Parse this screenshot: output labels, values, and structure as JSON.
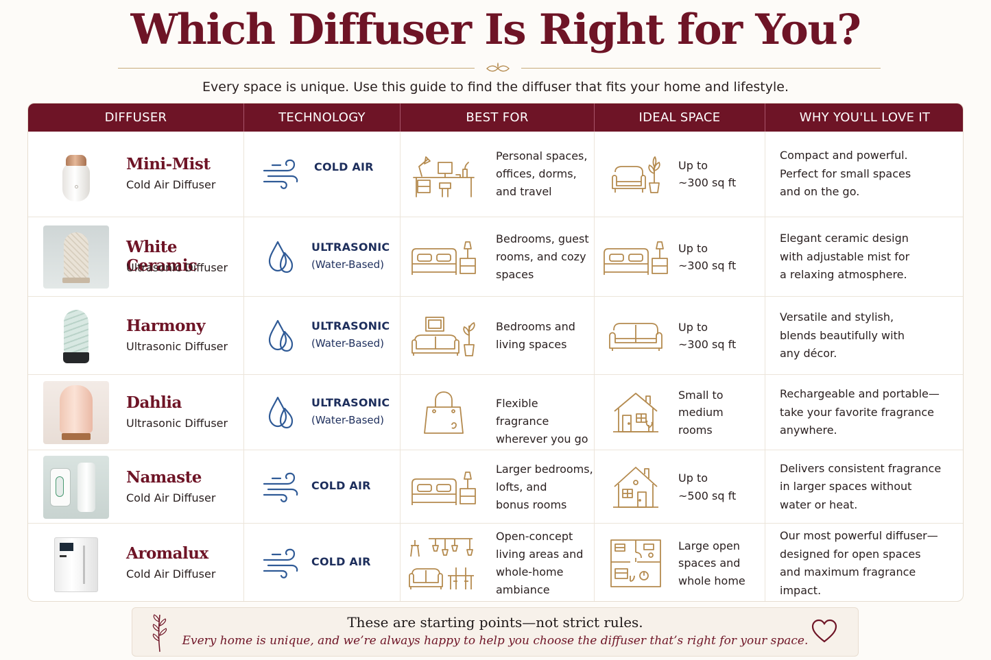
{
  "title": "Which Diffuser Is Right for You?",
  "subtitle": "Every space is unique. Use this guide to find the diffuser that fits your home and lifestyle.",
  "columns": [
    "DIFFUSER",
    "TECHNOLOGY",
    "BEST FOR",
    "IDEAL SPACE",
    "WHY YOU'LL LOVE IT"
  ],
  "rows": [
    {
      "name": "Mini-Mist",
      "type": "Cold Air Diffuser",
      "tech": "COLD AIR",
      "tech_sub": "",
      "tech_icon": "wind-icon",
      "best_for": [
        "Personal spaces,",
        "offices, dorms,",
        "and travel"
      ],
      "best_icon": "desk-icon",
      "ideal": [
        "Up to",
        "~300 sq ft"
      ],
      "ideal_icon": "armchair-plant-icon",
      "why": [
        "Compact and powerful.",
        "Perfect for small spaces",
        "and on the go."
      ]
    },
    {
      "name": "White Ceramic",
      "type": "Ultrasonic Diffuser",
      "tech": "ULTRASONIC",
      "tech_sub": "(Water-Based)",
      "tech_icon": "water-drops-icon",
      "best_for": [
        "Bedrooms, guest",
        "rooms, and cozy",
        "spaces"
      ],
      "best_icon": "bed-lamp-icon",
      "ideal": [
        "Up to",
        "~300 sq ft"
      ],
      "ideal_icon": "bed-lamp-icon",
      "why": [
        "Elegant ceramic design",
        "with adjustable mist for",
        "a relaxing atmosphere."
      ]
    },
    {
      "name": "Harmony",
      "type": "Ultrasonic Diffuser",
      "tech": "ULTRASONIC",
      "tech_sub": "(Water-Based)",
      "tech_icon": "water-drops-icon",
      "best_for": [
        "Bedrooms and",
        "living spaces"
      ],
      "best_icon": "sofa-frame-plant-icon",
      "ideal": [
        "Up to",
        "~300 sq ft"
      ],
      "ideal_icon": "sofa-icon",
      "why": [
        "Versatile and stylish,",
        "blends beautifully with",
        "any décor."
      ]
    },
    {
      "name": "Dahlia",
      "type": "Ultrasonic Diffuser",
      "tech": "ULTRASONIC",
      "tech_sub": "(Water-Based)",
      "tech_icon": "water-drops-icon",
      "best_for": [
        "Flexible fragrance",
        "wherever you go"
      ],
      "best_icon": "handbag-icon",
      "ideal": [
        "Small to",
        "medium",
        "rooms"
      ],
      "ideal_icon": "small-house-icon",
      "why": [
        "Rechargeable and portable—",
        "take your favorite fragrance",
        "anywhere."
      ]
    },
    {
      "name": "Namaste",
      "type": "Cold Air Diffuser",
      "tech": "COLD AIR",
      "tech_sub": "",
      "tech_icon": "wind-icon",
      "best_for": [
        "Larger bedrooms,",
        "lofts, and",
        "bonus rooms"
      ],
      "best_icon": "bed-lamp-icon",
      "ideal": [
        "Up to",
        "~500 sq ft"
      ],
      "ideal_icon": "house-icon",
      "why": [
        "Delivers consistent fragrance",
        "in larger spaces without",
        "water or heat."
      ]
    },
    {
      "name": "Aromalux",
      "type": "Cold Air Diffuser",
      "tech": "COLD AIR",
      "tech_sub": "",
      "tech_icon": "wind-icon",
      "best_for": [
        "Open-concept",
        "living areas and",
        "whole-home",
        "ambiance"
      ],
      "best_icon": "open-living-area-icon",
      "ideal": [
        "Large open",
        "spaces and",
        "whole home"
      ],
      "ideal_icon": "floor-plan-icon",
      "why": [
        "Our most powerful diffuser—",
        "designed for open spaces",
        "and maximum fragrance",
        "impact."
      ]
    }
  ],
  "footer": {
    "line1": "These are starting points—not strict rules.",
    "line2": "Every home is unique, and we’re always happy to help you choose the diffuser that’s right for your space."
  },
  "colors": {
    "brand": "#6e1426",
    "tech_text": "#1d2e5c",
    "tech_icon": "#2f5a96",
    "gold_icon": "#b48a4e",
    "background": "#fdfbf8"
  }
}
